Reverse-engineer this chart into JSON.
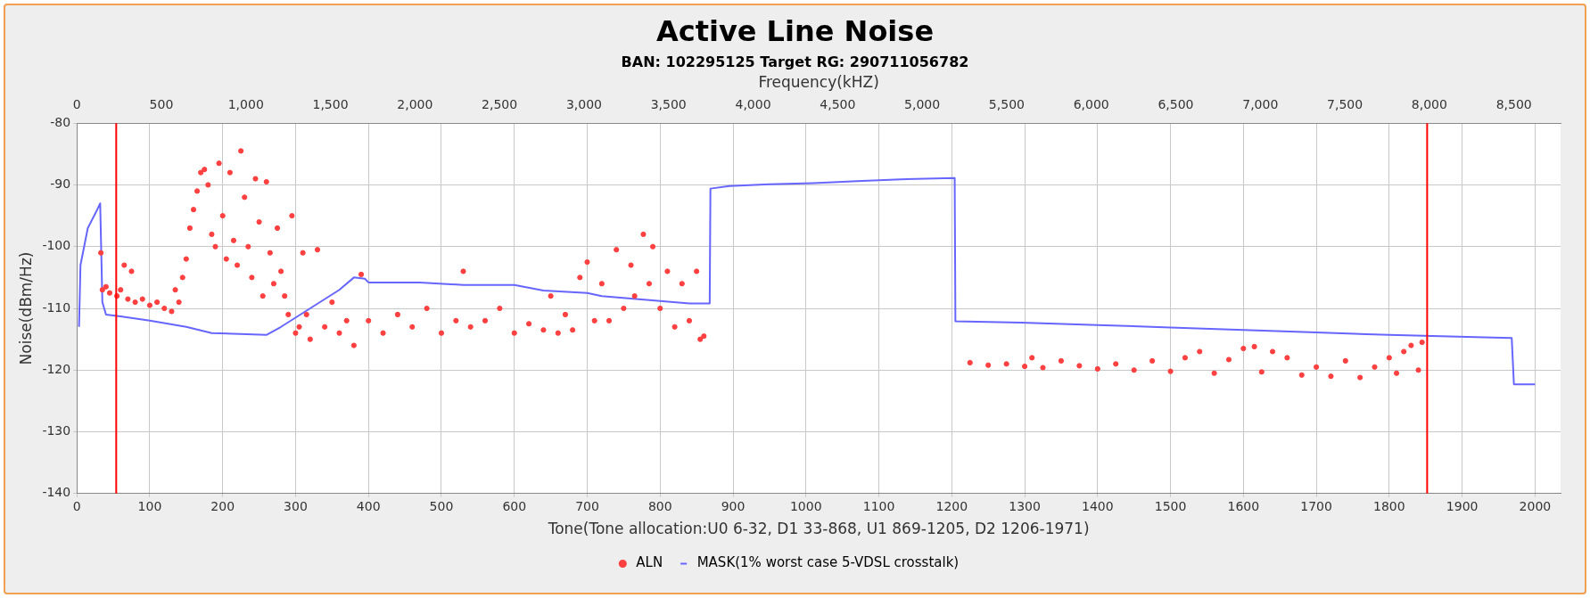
{
  "chart_data": {
    "type": "scatter",
    "title": "Active Line Noise",
    "subtitle": "BAN:  102295125    Target RG:  290711056782",
    "xlabel": "Tone(Tone allocation:U0 6-32, D1 33-868, U1 869-1205, D2 1206-1971)",
    "x2label": "Frequency(kHZ)",
    "ylabel": "Noise(dBm/Hz)",
    "xlim": [
      0,
      2035
    ],
    "xticks": [
      0,
      100,
      200,
      300,
      400,
      500,
      600,
      700,
      800,
      900,
      1000,
      1100,
      1200,
      1300,
      1400,
      1500,
      1600,
      1700,
      1800,
      1900,
      2000
    ],
    "x2lim": [
      0,
      8776
    ],
    "x2ticks": [
      0,
      500,
      {
        "value": 1000,
        "label": "1,000"
      },
      {
        "value": 1500,
        "label": "1,500"
      },
      {
        "value": 2000,
        "label": "2,000"
      },
      {
        "value": 2500,
        "label": "2,500"
      },
      {
        "value": 3000,
        "label": "3,000"
      },
      {
        "value": 3500,
        "label": "3,500"
      },
      {
        "value": 4000,
        "label": "4,000"
      },
      {
        "value": 4500,
        "label": "4,500"
      },
      {
        "value": 5000,
        "label": "5,000"
      },
      {
        "value": 5500,
        "label": "5,500"
      },
      {
        "value": 6000,
        "label": "6,000"
      },
      {
        "value": 6500,
        "label": "6,500"
      },
      {
        "value": 7000,
        "label": "7,000"
      },
      {
        "value": 7500,
        "label": "7,500"
      },
      {
        "value": 8000,
        "label": "8,000"
      },
      {
        "value": 8500,
        "label": "8,500"
      }
    ],
    "ylim": [
      -140,
      -80
    ],
    "yticks": [
      -140,
      -130,
      -120,
      -110,
      -100,
      -90,
      -80
    ],
    "grid": true,
    "legend": "bottom",
    "ref_lines": [
      {
        "axis": "x",
        "value": 54,
        "color": "#ff0000"
      },
      {
        "axis": "x",
        "value": 1852,
        "color": "#ff0000"
      }
    ],
    "series": [
      {
        "name": "ALN",
        "marker": "circle",
        "color": "#ff4040",
        "x": [
          33,
          35,
          40,
          45,
          55,
          60,
          65,
          70,
          75,
          80,
          90,
          100,
          110,
          120,
          130,
          135,
          140,
          145,
          150,
          155,
          160,
          165,
          170,
          175,
          180,
          185,
          190,
          195,
          200,
          205,
          210,
          215,
          220,
          225,
          230,
          235,
          240,
          245,
          250,
          255,
          260,
          265,
          270,
          275,
          280,
          285,
          290,
          295,
          300,
          305,
          310,
          315,
          320,
          330,
          340,
          350,
          360,
          370,
          380,
          390,
          400,
          420,
          440,
          460,
          480,
          500,
          520,
          530,
          540,
          560,
          580,
          600,
          620,
          640,
          650,
          660,
          670,
          680,
          690,
          700,
          710,
          720,
          730,
          740,
          750,
          760,
          765,
          777,
          785,
          790,
          800,
          810,
          820,
          830,
          840,
          850,
          855,
          860,
          1225,
          1250,
          1275,
          1300,
          1310,
          1325,
          1350,
          1375,
          1400,
          1425,
          1450,
          1475,
          1500,
          1520,
          1540,
          1560,
          1580,
          1600,
          1615,
          1625,
          1640,
          1660,
          1680,
          1700,
          1720,
          1740,
          1760,
          1780,
          1800,
          1810,
          1820,
          1830,
          1840,
          1845
        ],
        "values": [
          -101,
          -107,
          -106.5,
          -107.5,
          -108,
          -107,
          -103,
          -108.5,
          -104,
          -109,
          -108.5,
          -109.5,
          -109,
          -110,
          -110.5,
          -107,
          -109,
          -105,
          -102,
          -97,
          -94,
          -91,
          -88,
          -87.5,
          -90,
          -98,
          -100,
          -86.5,
          -95,
          -102,
          -88,
          -99,
          -103,
          -84.5,
          -92,
          -100,
          -105,
          -89,
          -96,
          -108,
          -89.5,
          -101,
          -106,
          -97,
          -104,
          -108,
          -111,
          -95,
          -114,
          -113,
          -101,
          -111,
          -115,
          -100.5,
          -113,
          -109,
          -114,
          -112,
          -116,
          -104.5,
          -112,
          -114,
          -111,
          -113,
          -110,
          -114,
          -112,
          -104,
          -113,
          -112,
          -110,
          -114,
          -112.5,
          -113.5,
          -108,
          -114,
          -111,
          -113.5,
          -105,
          -102.5,
          -112,
          -106,
          -112,
          -100.5,
          -110,
          -103,
          -108,
          -98,
          -106,
          -100,
          -110,
          -104,
          -113,
          -106,
          -112,
          -104,
          -115,
          -114.5,
          -118.8,
          -119.2,
          -119,
          -119.4,
          -118,
          -119.6,
          -118.5,
          -119.3,
          -119.8,
          -119,
          -120,
          -118.5,
          -120.2,
          -118,
          -117,
          -120.5,
          -118.3,
          -116.5,
          -116.2,
          -120.3,
          -117,
          -118,
          -120.8,
          -119.5,
          -121,
          -118.5,
          -121.2,
          -119.5,
          -118,
          -120.5,
          -117,
          -116,
          -120,
          -115.5
        ]
      },
      {
        "name": "MASK(1% worst case 5-VDSL crosstalk)",
        "type": "line",
        "marker": "none",
        "line_style": "solid",
        "color": "#6666ff",
        "x": [
          3,
          5,
          15,
          28,
          32,
          35,
          40,
          60,
          100,
          150,
          185,
          260,
          280,
          320,
          360,
          380,
          395,
          400,
          470,
          530,
          600,
          640,
          700,
          720,
          800,
          840,
          868,
          869,
          895,
          950,
          1010,
          1070,
          1130,
          1204,
          1205,
          1295,
          1400,
          1500,
          1600,
          1700,
          1800,
          1930,
          1968,
          1971,
          2000
        ],
        "values": [
          -113,
          -103,
          -97,
          -94,
          -93,
          -109,
          -111,
          -111.3,
          -112,
          -113,
          -114,
          -114.3,
          -113,
          -110,
          -107,
          -105,
          -105.2,
          -105.8,
          -105.8,
          -106.2,
          -106.2,
          -107.1,
          -107.5,
          -108,
          -108.8,
          -109.2,
          -109.2,
          -90.6,
          -90.2,
          -89.9,
          -89.7,
          -89.4,
          -89.1,
          -88.9,
          -112.1,
          -112.3,
          -112.7,
          -113.1,
          -113.5,
          -113.9,
          -114.3,
          -114.7,
          -114.8,
          -122.3,
          -122.3
        ]
      }
    ]
  }
}
